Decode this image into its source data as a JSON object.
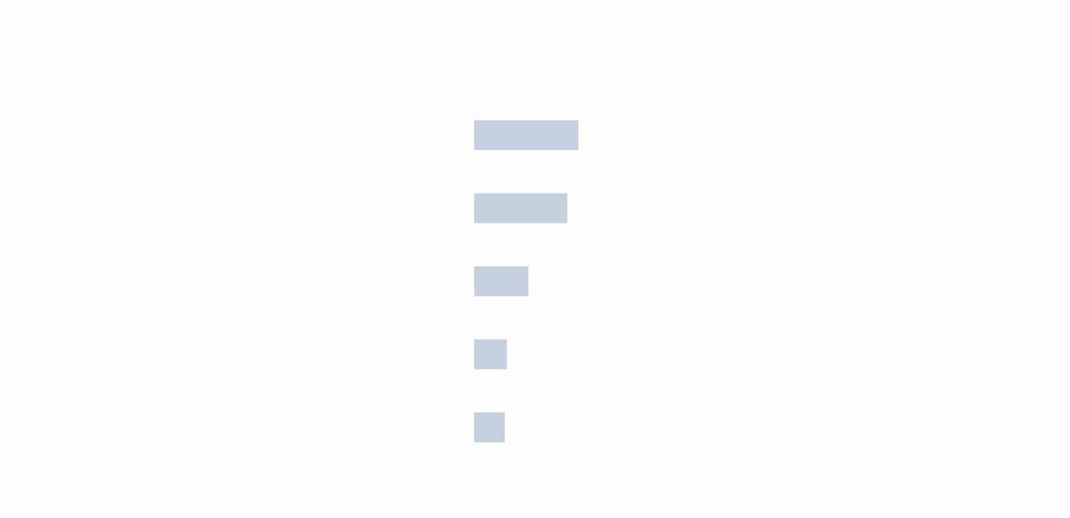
{
  "chart_data": {
    "type": "bar",
    "orientation": "horizontal",
    "categories": [
      null,
      null,
      null,
      null,
      null
    ],
    "values": [
      150,
      134,
      78,
      47,
      44
    ],
    "color": "#c5cfe0",
    "xlim": [
      0,
      858
    ]
  }
}
